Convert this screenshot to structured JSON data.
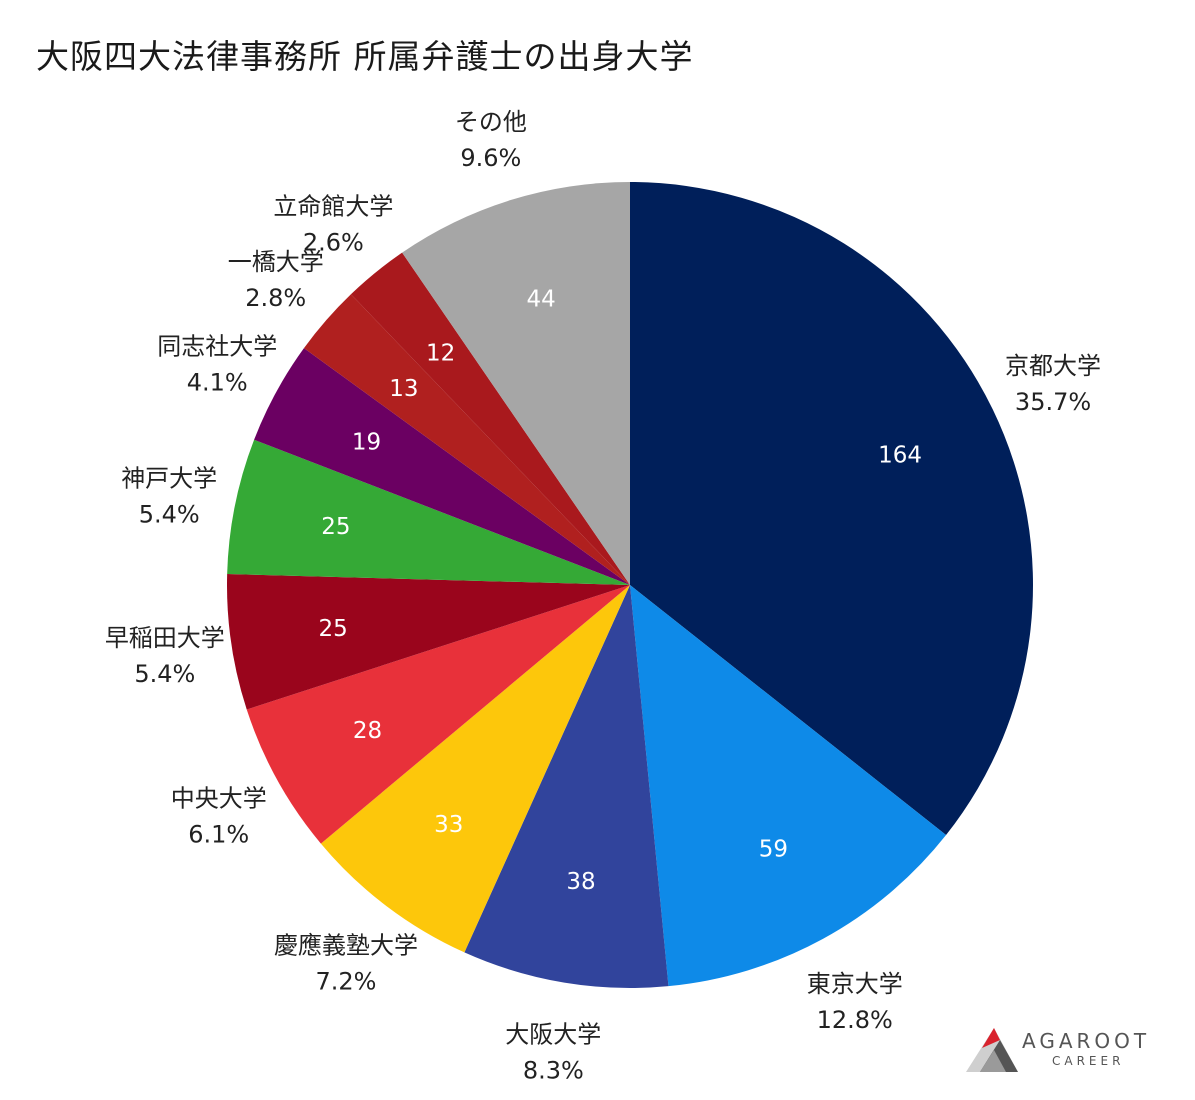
{
  "title": "大阪四大法律事務所 所属弁護士の出身大学",
  "chart_data": {
    "type": "pie",
    "title": "大阪四大法律事務所 所属弁護士の出身大学",
    "slices": [
      {
        "label": "京都大学",
        "value": 164,
        "percent": "35.7%",
        "color": "#001f5a"
      },
      {
        "label": "東京大学",
        "value": 59,
        "percent": "12.8%",
        "color": "#0e8ae8"
      },
      {
        "label": "大阪大学",
        "value": 38,
        "percent": "8.3%",
        "color": "#31449c"
      },
      {
        "label": "慶應義塾大学",
        "value": 33,
        "percent": "7.2%",
        "color": "#fdc70b"
      },
      {
        "label": "中央大学",
        "value": 28,
        "percent": "6.1%",
        "color": "#e8313a"
      },
      {
        "label": "早稲田大学",
        "value": 25,
        "percent": "5.4%",
        "color": "#9a051c"
      },
      {
        "label": "神戸大学",
        "value": 25,
        "percent": "5.4%",
        "color": "#35a936"
      },
      {
        "label": "同志社大学",
        "value": 19,
        "percent": "4.1%",
        "color": "#6b0062"
      },
      {
        "label": "一橋大学",
        "value": 13,
        "percent": "2.8%",
        "color": "#b0201f"
      },
      {
        "label": "立命館大学",
        "value": 12,
        "percent": "2.6%",
        "color": "#a9191d"
      },
      {
        "label": "その他",
        "value": 44,
        "percent": "9.6%",
        "color": "#a6a6a6"
      }
    ],
    "start_angle": "top",
    "direction": "clockwise",
    "legend": "none"
  },
  "logo": {
    "main": "AGAROOT",
    "sub": "CAREER",
    "colors": {
      "red": "#d9232e",
      "dark": "#555555",
      "gray": "#cfcfcf"
    }
  }
}
